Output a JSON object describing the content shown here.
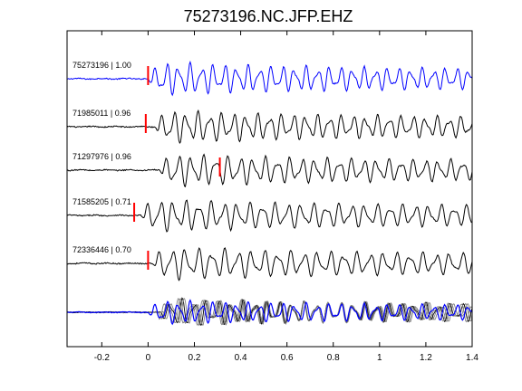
{
  "chart_data": {
    "type": "line",
    "title": "75273196.NC.JFP.EHZ",
    "xlabel": "",
    "ylabel": "",
    "xlim": [
      -0.35,
      1.4
    ],
    "xticks": [
      -0.2,
      0,
      0.2,
      0.4,
      0.6,
      0.8,
      1,
      1.2,
      1.4
    ],
    "xtick_labels": [
      "-0.2",
      "0",
      "0.2",
      "0.4",
      "0.6",
      "0.8",
      "1",
      "1.2",
      "1.4"
    ],
    "grid": false,
    "series": [
      {
        "name": "75273196 | 1.00",
        "color": "#0000ff",
        "pick_time": 0.0
      },
      {
        "name": "71985011 | 0.96",
        "color": "#000000",
        "pick_time": -0.01
      },
      {
        "name": "71297976 | 0.96",
        "color": "#000000",
        "pick_time": 0.31
      },
      {
        "name": "71585205 | 0.71",
        "color": "#000000",
        "pick_time": -0.06
      },
      {
        "name": "72336446 | 0.70",
        "color": "#000000",
        "pick_time": 0.0
      }
    ],
    "stack": {
      "colors": [
        "#000000",
        "#808080",
        "#0000ff"
      ]
    },
    "pick_color": "#ff0000"
  }
}
